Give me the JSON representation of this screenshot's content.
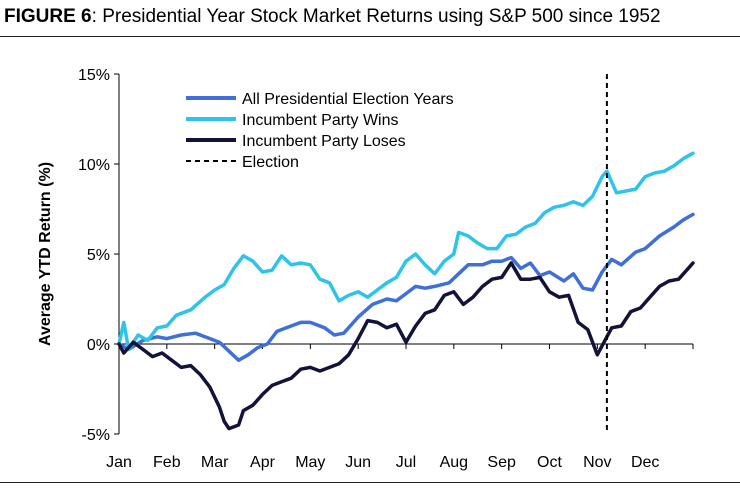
{
  "figure": {
    "label": "FIGURE 6",
    "title": "Presidential Year Stock Market Returns using S&P 500 since 1952"
  },
  "chart_data": {
    "type": "line",
    "ylabel": "Average YTD Return (%)",
    "xlabel": "",
    "ylim": [
      -5,
      15
    ],
    "yticks": [
      -5,
      0,
      5,
      10,
      15
    ],
    "ytick_labels": [
      "-5%",
      "0%",
      "5%",
      "10%",
      "15%"
    ],
    "months": [
      "Jan",
      "Feb",
      "Mar",
      "Apr",
      "May",
      "Jun",
      "Jul",
      "Aug",
      "Sep",
      "Oct",
      "Nov",
      "Dec"
    ],
    "month_positions": [
      0,
      1,
      2,
      3,
      4,
      5,
      6,
      7,
      8,
      9,
      10,
      11
    ],
    "xlim": [
      0,
      12
    ],
    "grid": false,
    "legend_position": "top-left",
    "election_x": 10.2,
    "series": [
      {
        "name": "All Presidential Election Years",
        "color": "#3f6fd8",
        "style": "solid",
        "points": [
          [
            0,
            0
          ],
          [
            0.2,
            -0.3
          ],
          [
            0.5,
            0.2
          ],
          [
            0.8,
            0.4
          ],
          [
            1,
            0.3
          ],
          [
            1.3,
            0.5
          ],
          [
            1.6,
            0.6
          ],
          [
            1.9,
            0.3
          ],
          [
            2.1,
            0.1
          ],
          [
            2.3,
            -0.4
          ],
          [
            2.5,
            -0.9
          ],
          [
            2.7,
            -0.6
          ],
          [
            2.9,
            -0.2
          ],
          [
            3.1,
            0
          ],
          [
            3.3,
            0.7
          ],
          [
            3.5,
            0.9
          ],
          [
            3.8,
            1.2
          ],
          [
            4,
            1.2
          ],
          [
            4.3,
            0.9
          ],
          [
            4.5,
            0.5
          ],
          [
            4.7,
            0.6
          ],
          [
            5,
            1.5
          ],
          [
            5.3,
            2.2
          ],
          [
            5.6,
            2.5
          ],
          [
            5.8,
            2.4
          ],
          [
            6,
            2.8
          ],
          [
            6.2,
            3.2
          ],
          [
            6.4,
            3.1
          ],
          [
            6.6,
            3.2
          ],
          [
            6.9,
            3.4
          ],
          [
            7.1,
            3.9
          ],
          [
            7.3,
            4.4
          ],
          [
            7.6,
            4.4
          ],
          [
            7.8,
            4.6
          ],
          [
            8,
            4.6
          ],
          [
            8.2,
            4.8
          ],
          [
            8.4,
            4.2
          ],
          [
            8.6,
            4.5
          ],
          [
            8.8,
            3.8
          ],
          [
            9,
            4.0
          ],
          [
            9.3,
            3.5
          ],
          [
            9.5,
            3.9
          ],
          [
            9.7,
            3.1
          ],
          [
            9.9,
            3.0
          ],
          [
            10.1,
            4.0
          ],
          [
            10.3,
            4.7
          ],
          [
            10.5,
            4.4
          ],
          [
            10.8,
            5.1
          ],
          [
            11,
            5.3
          ],
          [
            11.3,
            6.0
          ],
          [
            11.6,
            6.5
          ],
          [
            11.8,
            6.9
          ],
          [
            12,
            7.2
          ]
        ]
      },
      {
        "name": "Incumbent Party Wins",
        "color": "#2ec4ea",
        "style": "solid",
        "points": [
          [
            0,
            0
          ],
          [
            0.1,
            1.2
          ],
          [
            0.2,
            -0.3
          ],
          [
            0.4,
            0.5
          ],
          [
            0.6,
            0.2
          ],
          [
            0.8,
            0.9
          ],
          [
            1,
            1.0
          ],
          [
            1.2,
            1.6
          ],
          [
            1.5,
            1.9
          ],
          [
            1.8,
            2.6
          ],
          [
            2,
            3.0
          ],
          [
            2.2,
            3.3
          ],
          [
            2.4,
            4.2
          ],
          [
            2.6,
            4.9
          ],
          [
            2.8,
            4.6
          ],
          [
            3,
            4.0
          ],
          [
            3.2,
            4.1
          ],
          [
            3.4,
            4.9
          ],
          [
            3.6,
            4.4
          ],
          [
            3.8,
            4.5
          ],
          [
            4,
            4.4
          ],
          [
            4.2,
            3.6
          ],
          [
            4.4,
            3.4
          ],
          [
            4.6,
            2.4
          ],
          [
            4.8,
            2.7
          ],
          [
            5,
            2.9
          ],
          [
            5.2,
            2.6
          ],
          [
            5.4,
            3.0
          ],
          [
            5.6,
            3.4
          ],
          [
            5.8,
            3.7
          ],
          [
            6,
            4.6
          ],
          [
            6.2,
            5.0
          ],
          [
            6.4,
            4.4
          ],
          [
            6.6,
            3.9
          ],
          [
            6.8,
            4.6
          ],
          [
            7,
            5.0
          ],
          [
            7.1,
            6.2
          ],
          [
            7.3,
            6.0
          ],
          [
            7.5,
            5.6
          ],
          [
            7.7,
            5.3
          ],
          [
            7.9,
            5.3
          ],
          [
            8.1,
            6.0
          ],
          [
            8.3,
            6.1
          ],
          [
            8.5,
            6.5
          ],
          [
            8.7,
            6.7
          ],
          [
            8.9,
            7.3
          ],
          [
            9.1,
            7.6
          ],
          [
            9.3,
            7.7
          ],
          [
            9.5,
            7.9
          ],
          [
            9.7,
            7.7
          ],
          [
            9.9,
            8.2
          ],
          [
            10.1,
            9.3
          ],
          [
            10.2,
            9.6
          ],
          [
            10.4,
            8.4
          ],
          [
            10.6,
            8.5
          ],
          [
            10.8,
            8.6
          ],
          [
            11,
            9.3
          ],
          [
            11.2,
            9.5
          ],
          [
            11.4,
            9.6
          ],
          [
            11.6,
            9.9
          ],
          [
            11.8,
            10.3
          ],
          [
            12,
            10.6
          ]
        ]
      },
      {
        "name": "Incumbent Party Loses",
        "color": "#13123a",
        "style": "solid",
        "points": [
          [
            0,
            0
          ],
          [
            0.1,
            -0.5
          ],
          [
            0.3,
            0.1
          ],
          [
            0.5,
            -0.3
          ],
          [
            0.7,
            -0.7
          ],
          [
            0.9,
            -0.5
          ],
          [
            1.1,
            -0.9
          ],
          [
            1.3,
            -1.3
          ],
          [
            1.5,
            -1.2
          ],
          [
            1.7,
            -1.7
          ],
          [
            1.9,
            -2.4
          ],
          [
            2.1,
            -3.5
          ],
          [
            2.2,
            -4.3
          ],
          [
            2.3,
            -4.7
          ],
          [
            2.5,
            -4.5
          ],
          [
            2.6,
            -3.7
          ],
          [
            2.8,
            -3.4
          ],
          [
            3,
            -2.8
          ],
          [
            3.2,
            -2.3
          ],
          [
            3.4,
            -2.1
          ],
          [
            3.6,
            -1.9
          ],
          [
            3.8,
            -1.4
          ],
          [
            4,
            -1.3
          ],
          [
            4.2,
            -1.5
          ],
          [
            4.4,
            -1.3
          ],
          [
            4.6,
            -1.1
          ],
          [
            4.8,
            -0.6
          ],
          [
            5,
            0.3
          ],
          [
            5.2,
            1.3
          ],
          [
            5.4,
            1.2
          ],
          [
            5.6,
            0.9
          ],
          [
            5.8,
            1.1
          ],
          [
            6,
            0.1
          ],
          [
            6.2,
            1.0
          ],
          [
            6.4,
            1.7
          ],
          [
            6.6,
            1.9
          ],
          [
            6.8,
            2.7
          ],
          [
            7,
            2.9
          ],
          [
            7.2,
            2.2
          ],
          [
            7.4,
            2.6
          ],
          [
            7.6,
            3.2
          ],
          [
            7.8,
            3.6
          ],
          [
            8,
            3.7
          ],
          [
            8.2,
            4.5
          ],
          [
            8.4,
            3.6
          ],
          [
            8.6,
            3.6
          ],
          [
            8.8,
            3.7
          ],
          [
            9,
            2.9
          ],
          [
            9.2,
            2.6
          ],
          [
            9.4,
            2.7
          ],
          [
            9.6,
            1.2
          ],
          [
            9.8,
            0.8
          ],
          [
            10,
            -0.6
          ],
          [
            10.2,
            0.4
          ],
          [
            10.3,
            0.9
          ],
          [
            10.5,
            1.0
          ],
          [
            10.7,
            1.8
          ],
          [
            10.9,
            2.0
          ],
          [
            11.1,
            2.6
          ],
          [
            11.3,
            3.2
          ],
          [
            11.5,
            3.5
          ],
          [
            11.7,
            3.6
          ],
          [
            11.9,
            4.2
          ],
          [
            12,
            4.5
          ]
        ]
      },
      {
        "name": "Election",
        "color": "#000000",
        "style": "dashed"
      }
    ]
  }
}
